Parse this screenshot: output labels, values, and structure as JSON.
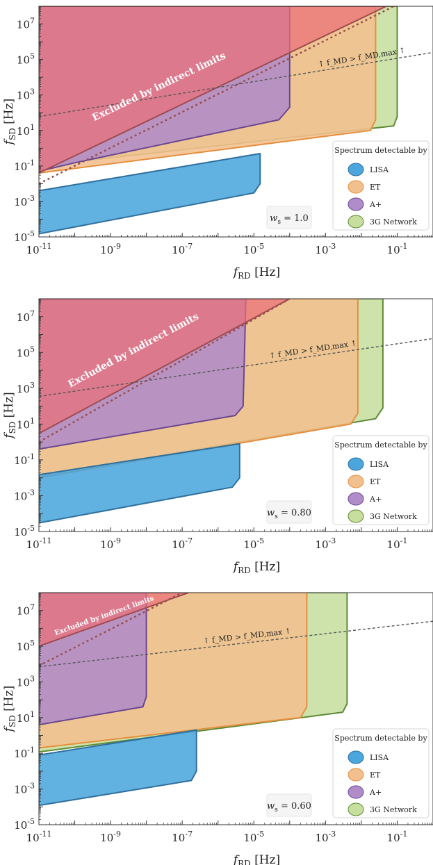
{
  "figure": {
    "colors": {
      "lisa": "#4ba6dd",
      "lisa_edge": "#2f6f9c",
      "et": "#f2c08e",
      "et_edge": "#e58f3e",
      "aplus": "#b08cc8",
      "aplus_edge": "#6a4691",
      "network3g": "#c6df9f",
      "network3g_edge": "#5e8a35",
      "excluded": "#ec6f78",
      "excluded_edge": "#a04a50"
    }
  },
  "chart_data": [
    {
      "type": "area",
      "xscale": "log",
      "yscale": "log",
      "xlim": [
        1e-11,
        1
      ],
      "ylim": [
        1e-05,
        100000000.0
      ],
      "xlabel": "f_RD [Hz]",
      "ylabel": "f_SD [Hz]",
      "xticks": [
        "10^-11",
        "10^-9",
        "10^-7",
        "10^-5",
        "10^-3",
        "10^-1"
      ],
      "yticks": [
        "10^-5",
        "10^-3",
        "10^-1",
        "10^1",
        "10^3",
        "10^5",
        "10^7"
      ],
      "ws_label": "w_s = 1.0",
      "legend": {
        "title": "Spectrum detectable by",
        "entries": [
          "LISA",
          "ET",
          "A+",
          "3G Network"
        ],
        "position": "lower right"
      },
      "excluded_label": "Excluded by indirect limits",
      "fmd_label": "↑ f_MD > f_MD,max ↑",
      "series": [
        {
          "name": "3G Network",
          "color_key": "network3g",
          "polygon": [
            [
              1e-11,
              0.1
            ],
            [
              0.08,
              18
            ],
            [
              0.1,
              60
            ],
            [
              0.1,
              100000000.0
            ],
            [
              1e-11,
              100000000.0
            ]
          ]
        },
        {
          "name": "ET",
          "color_key": "et",
          "polygon": [
            [
              1e-11,
              0.04
            ],
            [
              0.018,
              10
            ],
            [
              0.025,
              40
            ],
            [
              0.025,
              100000000.0
            ],
            [
              1e-11,
              100000000.0
            ]
          ]
        },
        {
          "name": "A+",
          "color_key": "aplus",
          "polygon": [
            [
              1e-11,
              0.05
            ],
            [
              1e-10,
              0.15
            ],
            [
              5e-05,
              40
            ],
            [
              0.0001,
              200
            ],
            [
              0.0001,
              100000000.0
            ],
            [
              1e-11,
              100000000.0
            ]
          ]
        },
        {
          "name": "LISA",
          "color_key": "lisa",
          "polygon": [
            [
              1e-11,
              1.5e-05
            ],
            [
              1e-05,
              0.003
            ],
            [
              1.5e-05,
              0.01
            ],
            [
              1.5e-05,
              0.5
            ],
            [
              1e-11,
              0.004
            ]
          ]
        }
      ],
      "excluded": [
        [
          1e-11,
          0.04
        ],
        [
          0.05,
          100000000.0
        ],
        [
          1e-11,
          100000000.0
        ]
      ],
      "lines": [
        {
          "kind": "fmd_boundary",
          "points": [
            [
              1e-11,
              60
            ],
            [
              1,
              250000.0
            ]
          ]
        },
        {
          "kind": "guide",
          "points": [
            [
              1e-11,
              0.01
            ],
            [
              0.08,
              100000000.0
            ]
          ]
        }
      ]
    },
    {
      "type": "area",
      "xscale": "log",
      "yscale": "log",
      "xlim": [
        1e-11,
        1
      ],
      "ylim": [
        1e-05,
        100000000.0
      ],
      "xlabel": "f_RD [Hz]",
      "ylabel": "f_SD [Hz]",
      "xticks": [
        "10^-11",
        "10^-9",
        "10^-7",
        "10^-5",
        "10^-3",
        "10^-1"
      ],
      "yticks": [
        "10^-5",
        "10^-3",
        "10^-1",
        "10^1",
        "10^3",
        "10^5",
        "10^7"
      ],
      "ws_label": "w_s = 0.80",
      "legend": {
        "title": "Spectrum detectable by",
        "entries": [
          "LISA",
          "ET",
          "A+",
          "3G Network"
        ],
        "position": "lower right"
      },
      "excluded_label": "Excluded by indirect limits",
      "fmd_label": "↑ f_MD > f_MD,max ↑",
      "series": [
        {
          "name": "3G Network",
          "color_key": "network3g",
          "polygon": [
            [
              1e-11,
              0.012
            ],
            [
              0.025,
              20
            ],
            [
              0.04,
              80
            ],
            [
              0.04,
              100000000.0
            ],
            [
              1e-11,
              100000000.0
            ]
          ]
        },
        {
          "name": "ET",
          "color_key": "et",
          "polygon": [
            [
              1e-11,
              0.01
            ],
            [
              0.005,
              10
            ],
            [
              0.008,
              40
            ],
            [
              0.008,
              100000000.0
            ],
            [
              1e-11,
              100000000.0
            ]
          ]
        },
        {
          "name": "A+",
          "color_key": "aplus",
          "polygon": [
            [
              1e-11,
              0.4
            ],
            [
              3e-06,
              30
            ],
            [
              5e-06,
              100
            ],
            [
              6e-06,
              100000000.0
            ],
            [
              1e-11,
              100000000.0
            ]
          ]
        },
        {
          "name": "LISA",
          "color_key": "lisa",
          "polygon": [
            [
              1e-11,
              3e-05
            ],
            [
              2.5e-06,
              0.003
            ],
            [
              4e-06,
              0.01
            ],
            [
              4e-06,
              0.8
            ],
            [
              1e-11,
              0.015
            ]
          ]
        }
      ],
      "excluded": [
        [
          1e-11,
          3
        ],
        [
          0.0001,
          100000000.0
        ],
        [
          1e-11,
          100000000.0
        ]
      ],
      "lines": [
        {
          "kind": "fmd_boundary",
          "points": [
            [
              1e-11,
              350
            ],
            [
              1,
              600000.0
            ]
          ]
        },
        {
          "kind": "guide",
          "points": [
            [
              1e-11,
              1
            ],
            [
              0.0001,
              100000000.0
            ]
          ]
        }
      ]
    },
    {
      "type": "area",
      "xscale": "log",
      "yscale": "log",
      "xlim": [
        1e-11,
        1
      ],
      "ylim": [
        1e-05,
        100000000.0
      ],
      "xlabel": "f_RD [Hz]",
      "ylabel": "f_SD [Hz]",
      "xticks": [
        "10^-11",
        "10^-9",
        "10^-7",
        "10^-5",
        "10^-3",
        "10^-1"
      ],
      "yticks": [
        "10^-5",
        "10^-3",
        "10^-1",
        "10^1",
        "10^3",
        "10^5",
        "10^7"
      ],
      "ws_label": "w_s = 0.60",
      "legend": {
        "title": "Spectrum detectable by",
        "entries": [
          "LISA",
          "ET",
          "A+",
          "3G Network"
        ],
        "position": "lower right"
      },
      "excluded_label": "Excluded by indirect limits",
      "fmd_label": "↑ f_MD > f_MD,max ↑",
      "series": [
        {
          "name": "3G Network",
          "color_key": "network3g",
          "polygon": [
            [
              1e-11,
              0.12
            ],
            [
              0.003,
              20
            ],
            [
              0.004,
              60
            ],
            [
              0.004,
              100000000.0
            ],
            [
              1e-11,
              100000000.0
            ]
          ]
        },
        {
          "name": "ET",
          "color_key": "et",
          "polygon": [
            [
              1e-11,
              0.2
            ],
            [
              0.0002,
              10
            ],
            [
              0.0003,
              40
            ],
            [
              0.0003,
              100000000.0
            ],
            [
              1e-11,
              100000000.0
            ]
          ]
        },
        {
          "name": "A+",
          "color_key": "aplus",
          "polygon": [
            [
              1e-11,
              4
            ],
            [
              8e-09,
              40
            ],
            [
              1e-08,
              150
            ],
            [
              1e-08,
              100000000.0
            ],
            [
              1e-11,
              100000000.0
            ]
          ]
        },
        {
          "name": "LISA",
          "color_key": "lisa",
          "polygon": [
            [
              1e-11,
              0.00012
            ],
            [
              1.8e-07,
              0.003
            ],
            [
              2.5e-07,
              0.01
            ],
            [
              2.5e-07,
              2
            ],
            [
              1e-11,
              0.08
            ]
          ]
        }
      ],
      "excluded": [
        [
          1e-11,
          100000.0
        ],
        [
          1.5e-07,
          100000000.0
        ],
        [
          1e-11,
          100000000.0
        ]
      ],
      "lines": [
        {
          "kind": "fmd_boundary",
          "points": [
            [
              1e-11,
              7000
            ],
            [
              1,
              2500000.0
            ]
          ]
        },
        {
          "kind": "guide",
          "points": [
            [
              1e-11,
              8000
            ],
            [
              1e-07,
              100000000.0
            ]
          ]
        }
      ]
    }
  ]
}
